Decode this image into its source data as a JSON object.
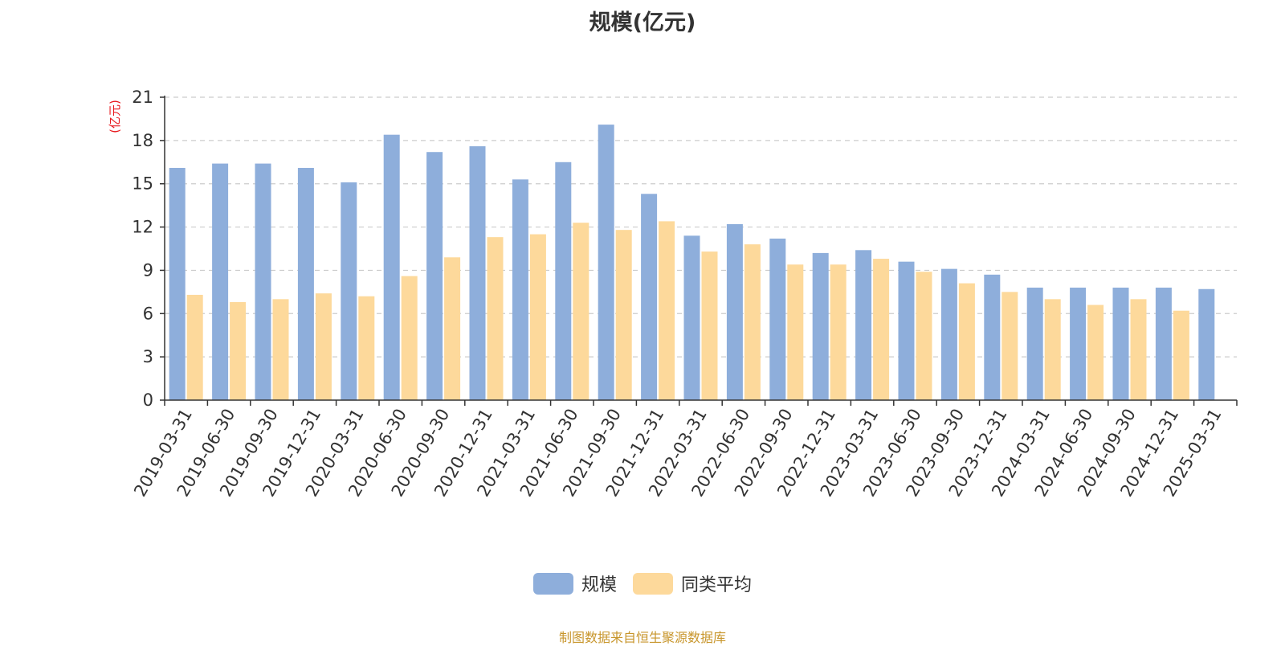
{
  "chart_data": {
    "type": "bar",
    "title": "规模(亿元)",
    "ylabel": "(亿元)",
    "ylim": [
      0,
      21
    ],
    "yticks": [
      "0",
      "3",
      "6",
      "9",
      "12",
      "15",
      "18",
      "21"
    ],
    "grid": true,
    "legend_position": "bottom-center",
    "categories": [
      "2019-03-31",
      "2019-06-30",
      "2019-09-30",
      "2019-12-31",
      "2020-03-31",
      "2020-06-30",
      "2020-09-30",
      "2020-12-31",
      "2021-03-31",
      "2021-06-30",
      "2021-09-30",
      "2021-12-31",
      "2022-03-31",
      "2022-06-30",
      "2022-09-30",
      "2022-12-31",
      "2023-03-31",
      "2023-06-30",
      "2023-09-30",
      "2023-12-31",
      "2024-03-31",
      "2024-06-30",
      "2024-09-30",
      "2024-12-31",
      "2025-03-31"
    ],
    "series": [
      {
        "name": "规模",
        "color": "#8eaedb",
        "values": [
          16.1,
          16.4,
          16.4,
          16.1,
          15.1,
          18.4,
          17.2,
          17.6,
          15.3,
          16.5,
          19.1,
          14.3,
          11.4,
          12.2,
          11.2,
          10.2,
          10.4,
          9.6,
          9.1,
          8.7,
          7.8,
          7.8,
          7.8,
          7.8,
          7.7
        ]
      },
      {
        "name": "同类平均",
        "color": "#fdd99b",
        "values": [
          7.3,
          6.8,
          7.0,
          7.4,
          7.2,
          8.6,
          9.9,
          11.3,
          11.5,
          12.3,
          11.8,
          12.4,
          10.3,
          10.8,
          9.4,
          9.4,
          9.8,
          8.9,
          8.1,
          7.5,
          7.0,
          6.6,
          7.0,
          6.2,
          null
        ]
      }
    ]
  },
  "legend": {
    "items": [
      "规模",
      "同类平均"
    ]
  },
  "source_note": "制图数据来自恒生聚源数据库",
  "colors": {
    "axis": "#333333",
    "grid": "#cccccc",
    "ylabel": "#e8191e",
    "source": "#c8962c"
  }
}
